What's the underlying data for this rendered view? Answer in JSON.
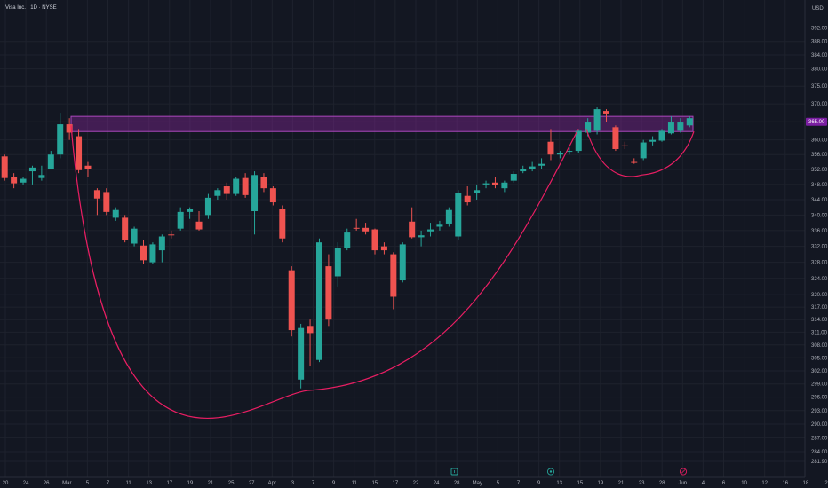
{
  "header": {
    "title": "Visa Inc. · 1D · NYSE",
    "currency": "USD"
  },
  "current_price_label": "365.00",
  "colors": {
    "background": "#131722",
    "up": "#26a69a",
    "down": "#ef5350",
    "zone_fill": "#9c27b0",
    "zone_stroke": "#ab47bc",
    "arc": "#e91e63",
    "grid": "#1e222d",
    "axis_text": "#b2b5be"
  },
  "chart_data": {
    "type": "candlestick",
    "y_scale": "log",
    "ylim": [
      280,
      398
    ],
    "price_ticks": [
      "392.00",
      "388.00",
      "384.00",
      "380.00",
      "375.00",
      "370.00",
      "365.00",
      "360.00",
      "356.00",
      "352.00",
      "348.00",
      "344.00",
      "340.00",
      "336.00",
      "332.00",
      "328.00",
      "324.00",
      "320.00",
      "317.00",
      "314.00",
      "311.00",
      "308.00",
      "305.00",
      "302.00",
      "299.00",
      "296.00",
      "293.00",
      "290.00",
      "287.00",
      "284.00",
      "281.90"
    ],
    "x_ticks": [
      "20",
      "24",
      "26",
      "Mar",
      "5",
      "7",
      "11",
      "13",
      "17",
      "19",
      "21",
      "25",
      "27",
      "Apr",
      "3",
      "7",
      "9",
      "11",
      "15",
      "17",
      "22",
      "24",
      "28",
      "May",
      "5",
      "7",
      "9",
      "13",
      "15",
      "19",
      "21",
      "23",
      "28",
      "Jun",
      "4",
      "6",
      "10",
      "12",
      "16",
      "18",
      "2"
    ],
    "candles": [
      {
        "o": 355.5,
        "c": 349.7,
        "h": 356,
        "l": 349
      },
      {
        "o": 350.0,
        "c": 348.3,
        "h": 351,
        "l": 347
      },
      {
        "o": 348.5,
        "c": 349.5,
        "h": 350,
        "l": 348
      },
      {
        "o": 351.5,
        "c": 352.5,
        "h": 353,
        "l": 348
      },
      {
        "o": 349.7,
        "c": 350.5,
        "h": 353,
        "l": 349
      },
      {
        "o": 352.0,
        "c": 356.0,
        "h": 357,
        "l": 352
      },
      {
        "o": 356.0,
        "c": 364.3,
        "h": 367.5,
        "l": 355
      },
      {
        "o": 364.3,
        "c": 362.0,
        "h": 366,
        "l": 360
      },
      {
        "o": 361.0,
        "c": 351.8,
        "h": 363,
        "l": 351
      },
      {
        "o": 353.0,
        "c": 352.0,
        "h": 354,
        "l": 350
      },
      {
        "o": 346.5,
        "c": 344.3,
        "h": 347,
        "l": 340
      },
      {
        "o": 346.0,
        "c": 340.8,
        "h": 347,
        "l": 340
      },
      {
        "o": 339.3,
        "c": 341.3,
        "h": 342,
        "l": 338.5
      },
      {
        "o": 339.3,
        "c": 333.5,
        "h": 340,
        "l": 333
      },
      {
        "o": 332.7,
        "c": 336.5,
        "h": 337,
        "l": 332
      },
      {
        "o": 332.2,
        "c": 328.5,
        "h": 333.5,
        "l": 327.5
      },
      {
        "o": 328.0,
        "c": 332.5,
        "h": 333,
        "l": 327.5
      },
      {
        "o": 331.0,
        "c": 334.5,
        "h": 335,
        "l": 328
      },
      {
        "o": 335.0,
        "c": 334.8,
        "h": 336,
        "l": 334
      },
      {
        "o": 336.5,
        "c": 340.8,
        "h": 342,
        "l": 336
      },
      {
        "o": 340.8,
        "c": 341.5,
        "h": 342,
        "l": 339
      },
      {
        "o": 338.3,
        "c": 336.3,
        "h": 341,
        "l": 336
      },
      {
        "o": 340.0,
        "c": 344.5,
        "h": 345.5,
        "l": 339
      },
      {
        "o": 345.0,
        "c": 346.5,
        "h": 347,
        "l": 344
      },
      {
        "o": 347.5,
        "c": 345.5,
        "h": 348.5,
        "l": 344
      },
      {
        "o": 345.5,
        "c": 349.5,
        "h": 350,
        "l": 345
      },
      {
        "o": 349.7,
        "c": 345.2,
        "h": 351,
        "l": 344.5
      },
      {
        "o": 341.0,
        "c": 350.5,
        "h": 351.5,
        "l": 335
      },
      {
        "o": 350.0,
        "c": 347.0,
        "h": 351,
        "l": 346
      },
      {
        "o": 347.0,
        "c": 343.3,
        "h": 347.5,
        "l": 342.5
      },
      {
        "o": 341.5,
        "c": 334.0,
        "h": 342.5,
        "l": 333
      },
      {
        "o": 326.0,
        "c": 311.5,
        "h": 327,
        "l": 310
      },
      {
        "o": 300.0,
        "c": 312.0,
        "h": 313,
        "l": 298
      },
      {
        "o": 312.5,
        "c": 310.8,
        "h": 314,
        "l": 303
      },
      {
        "o": 304.5,
        "c": 333.0,
        "h": 334,
        "l": 304
      },
      {
        "o": 327.0,
        "c": 314.0,
        "h": 330,
        "l": 312.5
      },
      {
        "o": 324.5,
        "c": 331.5,
        "h": 333,
        "l": 322
      },
      {
        "o": 331.5,
        "c": 335.5,
        "h": 336.5,
        "l": 331
      },
      {
        "o": 336.7,
        "c": 336.5,
        "h": 339,
        "l": 336
      },
      {
        "o": 336.7,
        "c": 335.8,
        "h": 338,
        "l": 335
      },
      {
        "o": 336.3,
        "c": 331.0,
        "h": 336.5,
        "l": 330
      },
      {
        "o": 332.0,
        "c": 331.0,
        "h": 333,
        "l": 330
      },
      {
        "o": 330.0,
        "c": 319.5,
        "h": 330.5,
        "l": 316.5
      },
      {
        "o": 323.5,
        "c": 332.5,
        "h": 333,
        "l": 323
      },
      {
        "o": 338.3,
        "c": 334.3,
        "h": 342,
        "l": 334
      },
      {
        "o": 334.3,
        "c": 334.8,
        "h": 336,
        "l": 332
      },
      {
        "o": 335.8,
        "c": 336.3,
        "h": 338,
        "l": 334.5
      },
      {
        "o": 337.0,
        "c": 337.5,
        "h": 338.5,
        "l": 336
      },
      {
        "o": 337.8,
        "c": 341.3,
        "h": 342,
        "l": 337
      },
      {
        "o": 334.5,
        "c": 345.8,
        "h": 346.5,
        "l": 333.5
      },
      {
        "o": 345.0,
        "c": 343.3,
        "h": 347.5,
        "l": 342.5
      },
      {
        "o": 345.8,
        "c": 346.5,
        "h": 348,
        "l": 344
      },
      {
        "o": 348.0,
        "c": 348.3,
        "h": 349,
        "l": 347
      },
      {
        "o": 348.5,
        "c": 347.8,
        "h": 350,
        "l": 347
      },
      {
        "o": 347.0,
        "c": 348.5,
        "h": 349,
        "l": 346
      },
      {
        "o": 349.0,
        "c": 350.8,
        "h": 351.5,
        "l": 348.5
      },
      {
        "o": 351.5,
        "c": 352.0,
        "h": 353,
        "l": 351
      },
      {
        "o": 352.0,
        "c": 352.8,
        "h": 354,
        "l": 351.5
      },
      {
        "o": 353.0,
        "c": 353.5,
        "h": 355,
        "l": 352
      },
      {
        "o": 359.5,
        "c": 356.0,
        "h": 363,
        "l": 354.5
      },
      {
        "o": 356.0,
        "c": 356.3,
        "h": 357,
        "l": 355
      },
      {
        "o": 356.8,
        "c": 357.0,
        "h": 358,
        "l": 356
      },
      {
        "o": 357.0,
        "c": 362.5,
        "h": 363,
        "l": 356.5
      },
      {
        "o": 362.0,
        "c": 364.8,
        "h": 366,
        "l": 361
      },
      {
        "o": 362.5,
        "c": 368.5,
        "h": 369,
        "l": 361.5
      },
      {
        "o": 368.0,
        "c": 367.3,
        "h": 368.5,
        "l": 365
      },
      {
        "o": 363.5,
        "c": 357.5,
        "h": 364,
        "l": 357
      },
      {
        "o": 358.5,
        "c": 358.3,
        "h": 359.5,
        "l": 357.5
      },
      {
        "o": 354.0,
        "c": 353.8,
        "h": 355,
        "l": 353.5
      },
      {
        "o": 355.0,
        "c": 359.3,
        "h": 360,
        "l": 354.5
      },
      {
        "o": 359.5,
        "c": 360.0,
        "h": 361,
        "l": 358.5
      },
      {
        "o": 359.8,
        "c": 362.5,
        "h": 363,
        "l": 359.5
      },
      {
        "o": 361.8,
        "c": 364.8,
        "h": 366.5,
        "l": 361.5
      },
      {
        "o": 362.5,
        "c": 364.8,
        "h": 366,
        "l": 362
      },
      {
        "o": 364.0,
        "c": 366.0,
        "h": 366.5,
        "l": 363.5
      }
    ],
    "resistance_zone": {
      "top": 366.5,
      "bottom": 362.3
    },
    "cup_arc": {
      "from_price": 364.0,
      "min_price": 297.5,
      "to_price": 363.0
    },
    "handle_arc": {
      "from_price": 363.0,
      "min_price": 350.5,
      "to_price": 362.3
    }
  }
}
